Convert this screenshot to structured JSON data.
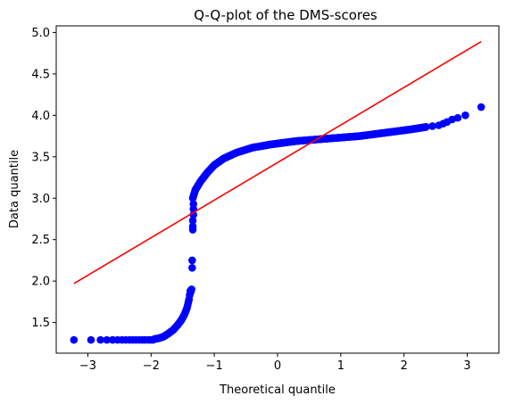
{
  "chart_data": {
    "type": "scatter",
    "title": "Q-Q-plot of the DMS-scores",
    "xlabel": "Theoretical quantile",
    "ylabel": "Data quantile",
    "xlim": [
      -3.5,
      3.5
    ],
    "ylim": [
      1.13,
      5.08
    ],
    "x_ticks": [
      -3,
      -2,
      -1,
      0,
      1,
      2,
      3
    ],
    "x_tick_labels": [
      "−3",
      "−2",
      "−1",
      "0",
      "1",
      "2",
      "3"
    ],
    "y_ticks": [
      1.5,
      2.0,
      2.5,
      3.0,
      3.5,
      4.0,
      4.5,
      5.0
    ],
    "y_tick_labels": [
      "1.5",
      "2.0",
      "2.5",
      "3.0",
      "3.5",
      "4.0",
      "4.5",
      "5.0"
    ],
    "grid": false,
    "marker_color": "#0000ff",
    "line_color": "#ff0000",
    "reference_line": {
      "x": [
        -3.22,
        3.22
      ],
      "y": [
        1.97,
        4.89
      ]
    },
    "curve_segments": [
      {
        "points": [
          [
            -1.95,
            1.3
          ],
          [
            -1.88,
            1.31
          ],
          [
            -1.8,
            1.33
          ],
          [
            -1.72,
            1.37
          ],
          [
            -1.65,
            1.41
          ],
          [
            -1.58,
            1.47
          ],
          [
            -1.52,
            1.53
          ],
          [
            -1.47,
            1.6
          ],
          [
            -1.43,
            1.68
          ],
          [
            -1.4,
            1.78
          ],
          [
            -1.38,
            1.88
          ]
        ],
        "step": 0.012
      },
      {
        "points": [
          [
            -1.34,
            3.0
          ],
          [
            -1.3,
            3.1
          ],
          [
            -1.22,
            3.2
          ],
          [
            -1.12,
            3.3
          ],
          [
            -1.0,
            3.4
          ],
          [
            -0.85,
            3.48
          ],
          [
            -0.65,
            3.55
          ],
          [
            -0.4,
            3.61
          ],
          [
            -0.1,
            3.65
          ],
          [
            0.3,
            3.69
          ],
          [
            0.8,
            3.72
          ],
          [
            1.3,
            3.75
          ],
          [
            1.8,
            3.8
          ],
          [
            2.1,
            3.83
          ],
          [
            2.35,
            3.86
          ]
        ],
        "step": 0.01
      }
    ],
    "extra_points": [
      [
        -3.22,
        1.29
      ],
      [
        -2.95,
        1.29
      ],
      [
        -2.8,
        1.29
      ],
      [
        -2.7,
        1.29
      ],
      [
        -2.61,
        1.29
      ],
      [
        -2.53,
        1.29
      ],
      [
        -2.46,
        1.29
      ],
      [
        -2.4,
        1.29
      ],
      [
        -2.34,
        1.29
      ],
      [
        -2.29,
        1.29
      ],
      [
        -2.24,
        1.29
      ],
      [
        -2.19,
        1.29
      ],
      [
        -2.14,
        1.29
      ],
      [
        -2.1,
        1.29
      ],
      [
        -2.05,
        1.29
      ],
      [
        -2.01,
        1.29
      ],
      [
        -1.97,
        1.29
      ],
      [
        -1.37,
        1.87
      ],
      [
        -1.36,
        1.9
      ],
      [
        -1.35,
        2.16
      ],
      [
        -1.35,
        2.25
      ],
      [
        -1.34,
        2.62
      ],
      [
        -1.34,
        2.66
      ],
      [
        -1.34,
        2.73
      ],
      [
        -1.33,
        2.8
      ],
      [
        -1.33,
        2.87
      ],
      [
        -1.33,
        2.93
      ],
      [
        2.45,
        3.87
      ],
      [
        2.55,
        3.88
      ],
      [
        2.62,
        3.9
      ],
      [
        2.68,
        3.92
      ],
      [
        2.76,
        3.95
      ],
      [
        2.85,
        3.97
      ],
      [
        2.97,
        4.0
      ],
      [
        3.22,
        4.1
      ]
    ]
  }
}
